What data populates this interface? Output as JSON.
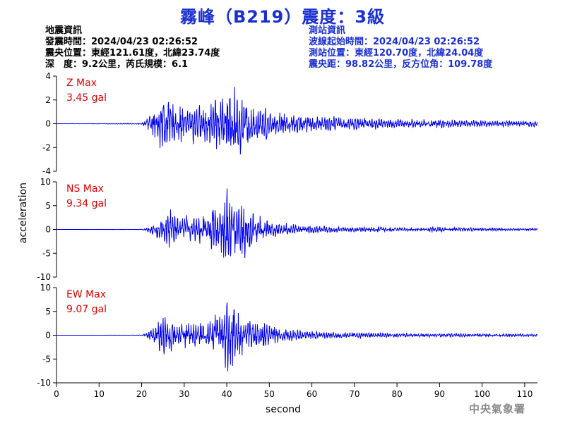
{
  "title": "霧峰（B219）震度：3級",
  "quake_info": {
    "header": "地震資訊",
    "time": "發震時間：2024/04/23 02:26:52",
    "epicenter": "震央位置：東經121.61度，北緯23.74度",
    "depth_magnitude": "深　度：9.2公里，芮氏規模：6.1"
  },
  "station_info": {
    "header": "測站資訊",
    "wave_start": "波線起始時間：2024/04/23 02:26:52",
    "location": "測站位置：東經120.70度，北緯24.04度",
    "distance": "震央距：98.82公里，反方位角：109.78度"
  },
  "footer": "中央氣象署",
  "colors": {
    "title": "#1a2fd1",
    "trace": "#0000ee",
    "max_label": "#e00000",
    "footer": "#8a8a8a"
  },
  "chart_data": {
    "type": "line",
    "xlabel": "second",
    "ylabel": "acceleration",
    "xlim": [
      0,
      113
    ],
    "xticks": [
      0,
      10,
      20,
      30,
      40,
      50,
      60,
      70,
      80,
      90,
      100,
      110
    ],
    "panels": [
      {
        "name": "Z",
        "max_title": "Z Max",
        "max_value": "3.45 gal",
        "ylim": [
          -4,
          4
        ],
        "yticks": [
          4,
          2,
          0,
          -2,
          -4
        ],
        "x": [
          0,
          20,
          21,
          22,
          23,
          24,
          25,
          26,
          27,
          28,
          29,
          30,
          31,
          32,
          33,
          34,
          35,
          36,
          37,
          38,
          39,
          40,
          41,
          42,
          43,
          44,
          45,
          46,
          47,
          48,
          49,
          50,
          52,
          54,
          56,
          58,
          60,
          62,
          65,
          68,
          71,
          74,
          77,
          80,
          83,
          86,
          89,
          92,
          95,
          98,
          101,
          104,
          107,
          110,
          113
        ],
        "envelope": [
          0,
          0.05,
          0.3,
          0.8,
          1.5,
          1.9,
          2.9,
          2.2,
          1.8,
          1.6,
          1.5,
          1.7,
          1.4,
          2.0,
          1.6,
          1.9,
          1.7,
          2.4,
          2.2,
          2.6,
          2.5,
          2.8,
          3.0,
          3.45,
          2.9,
          2.6,
          2.2,
          2.0,
          1.9,
          1.6,
          1.4,
          1.3,
          1.1,
          0.9,
          0.9,
          0.8,
          0.75,
          0.7,
          0.65,
          0.6,
          0.55,
          0.5,
          0.45,
          0.45,
          0.4,
          0.4,
          0.35,
          0.4,
          0.35,
          0.35,
          0.3,
          0.3,
          0.3,
          0.3,
          0.3
        ]
      },
      {
        "name": "NS",
        "max_title": "NS Max",
        "max_value": "9.34 gal",
        "ylim": [
          -10,
          10
        ],
        "yticks": [
          10,
          5,
          0,
          -5,
          -10
        ],
        "x": [
          0,
          20,
          21,
          22,
          23,
          24,
          25,
          26,
          27,
          28,
          29,
          30,
          31,
          32,
          33,
          34,
          35,
          36,
          37,
          38,
          39,
          40,
          41,
          42,
          43,
          44,
          45,
          46,
          47,
          48,
          49,
          50,
          52,
          54,
          56,
          58,
          60,
          62,
          65,
          68,
          71,
          74,
          77,
          80,
          83,
          86,
          89,
          92,
          95,
          98,
          101,
          104,
          107,
          110,
          113
        ],
        "envelope": [
          0,
          0.05,
          0.4,
          0.9,
          1.6,
          2.0,
          2.8,
          3.5,
          4.6,
          3.2,
          2.8,
          3.6,
          2.9,
          2.6,
          3.0,
          3.2,
          3.4,
          4.0,
          5.5,
          5.0,
          7.0,
          9.34,
          7.5,
          8.0,
          6.5,
          6.8,
          5.0,
          4.2,
          3.6,
          3.0,
          2.4,
          2.0,
          1.7,
          1.4,
          1.2,
          1.0,
          0.9,
          0.8,
          0.7,
          0.6,
          0.55,
          0.5,
          0.6,
          0.5,
          0.45,
          0.4,
          0.7,
          0.45,
          0.4,
          0.4,
          0.35,
          0.35,
          0.3,
          0.3,
          0.3
        ]
      },
      {
        "name": "EW",
        "max_title": "EW Max",
        "max_value": "9.07 gal",
        "ylim": [
          -10,
          10
        ],
        "yticks": [
          10,
          5,
          0,
          -5,
          -10
        ],
        "x": [
          0,
          20,
          21,
          22,
          23,
          24,
          25,
          26,
          27,
          28,
          29,
          30,
          31,
          32,
          33,
          34,
          35,
          36,
          37,
          38,
          39,
          40,
          41,
          42,
          43,
          44,
          45,
          46,
          47,
          48,
          49,
          50,
          52,
          54,
          56,
          58,
          60,
          62,
          65,
          68,
          71,
          74,
          77,
          80,
          83,
          86,
          89,
          92,
          95,
          98,
          101,
          104,
          107,
          110,
          113
        ],
        "envelope": [
          0,
          0.05,
          0.5,
          1.2,
          2.0,
          3.0,
          5.2,
          4.2,
          3.6,
          3.0,
          2.6,
          2.8,
          2.6,
          2.8,
          2.4,
          2.9,
          3.0,
          3.6,
          4.8,
          4.2,
          6.0,
          9.07,
          7.0,
          6.5,
          5.8,
          4.6,
          4.0,
          3.6,
          3.4,
          3.0,
          2.6,
          2.2,
          1.8,
          1.5,
          1.3,
          1.1,
          1.0,
          0.9,
          0.8,
          0.7,
          0.65,
          0.6,
          0.55,
          0.5,
          0.5,
          0.45,
          0.45,
          0.4,
          0.4,
          0.4,
          0.35,
          0.35,
          0.35,
          0.3,
          0.3
        ]
      }
    ]
  }
}
